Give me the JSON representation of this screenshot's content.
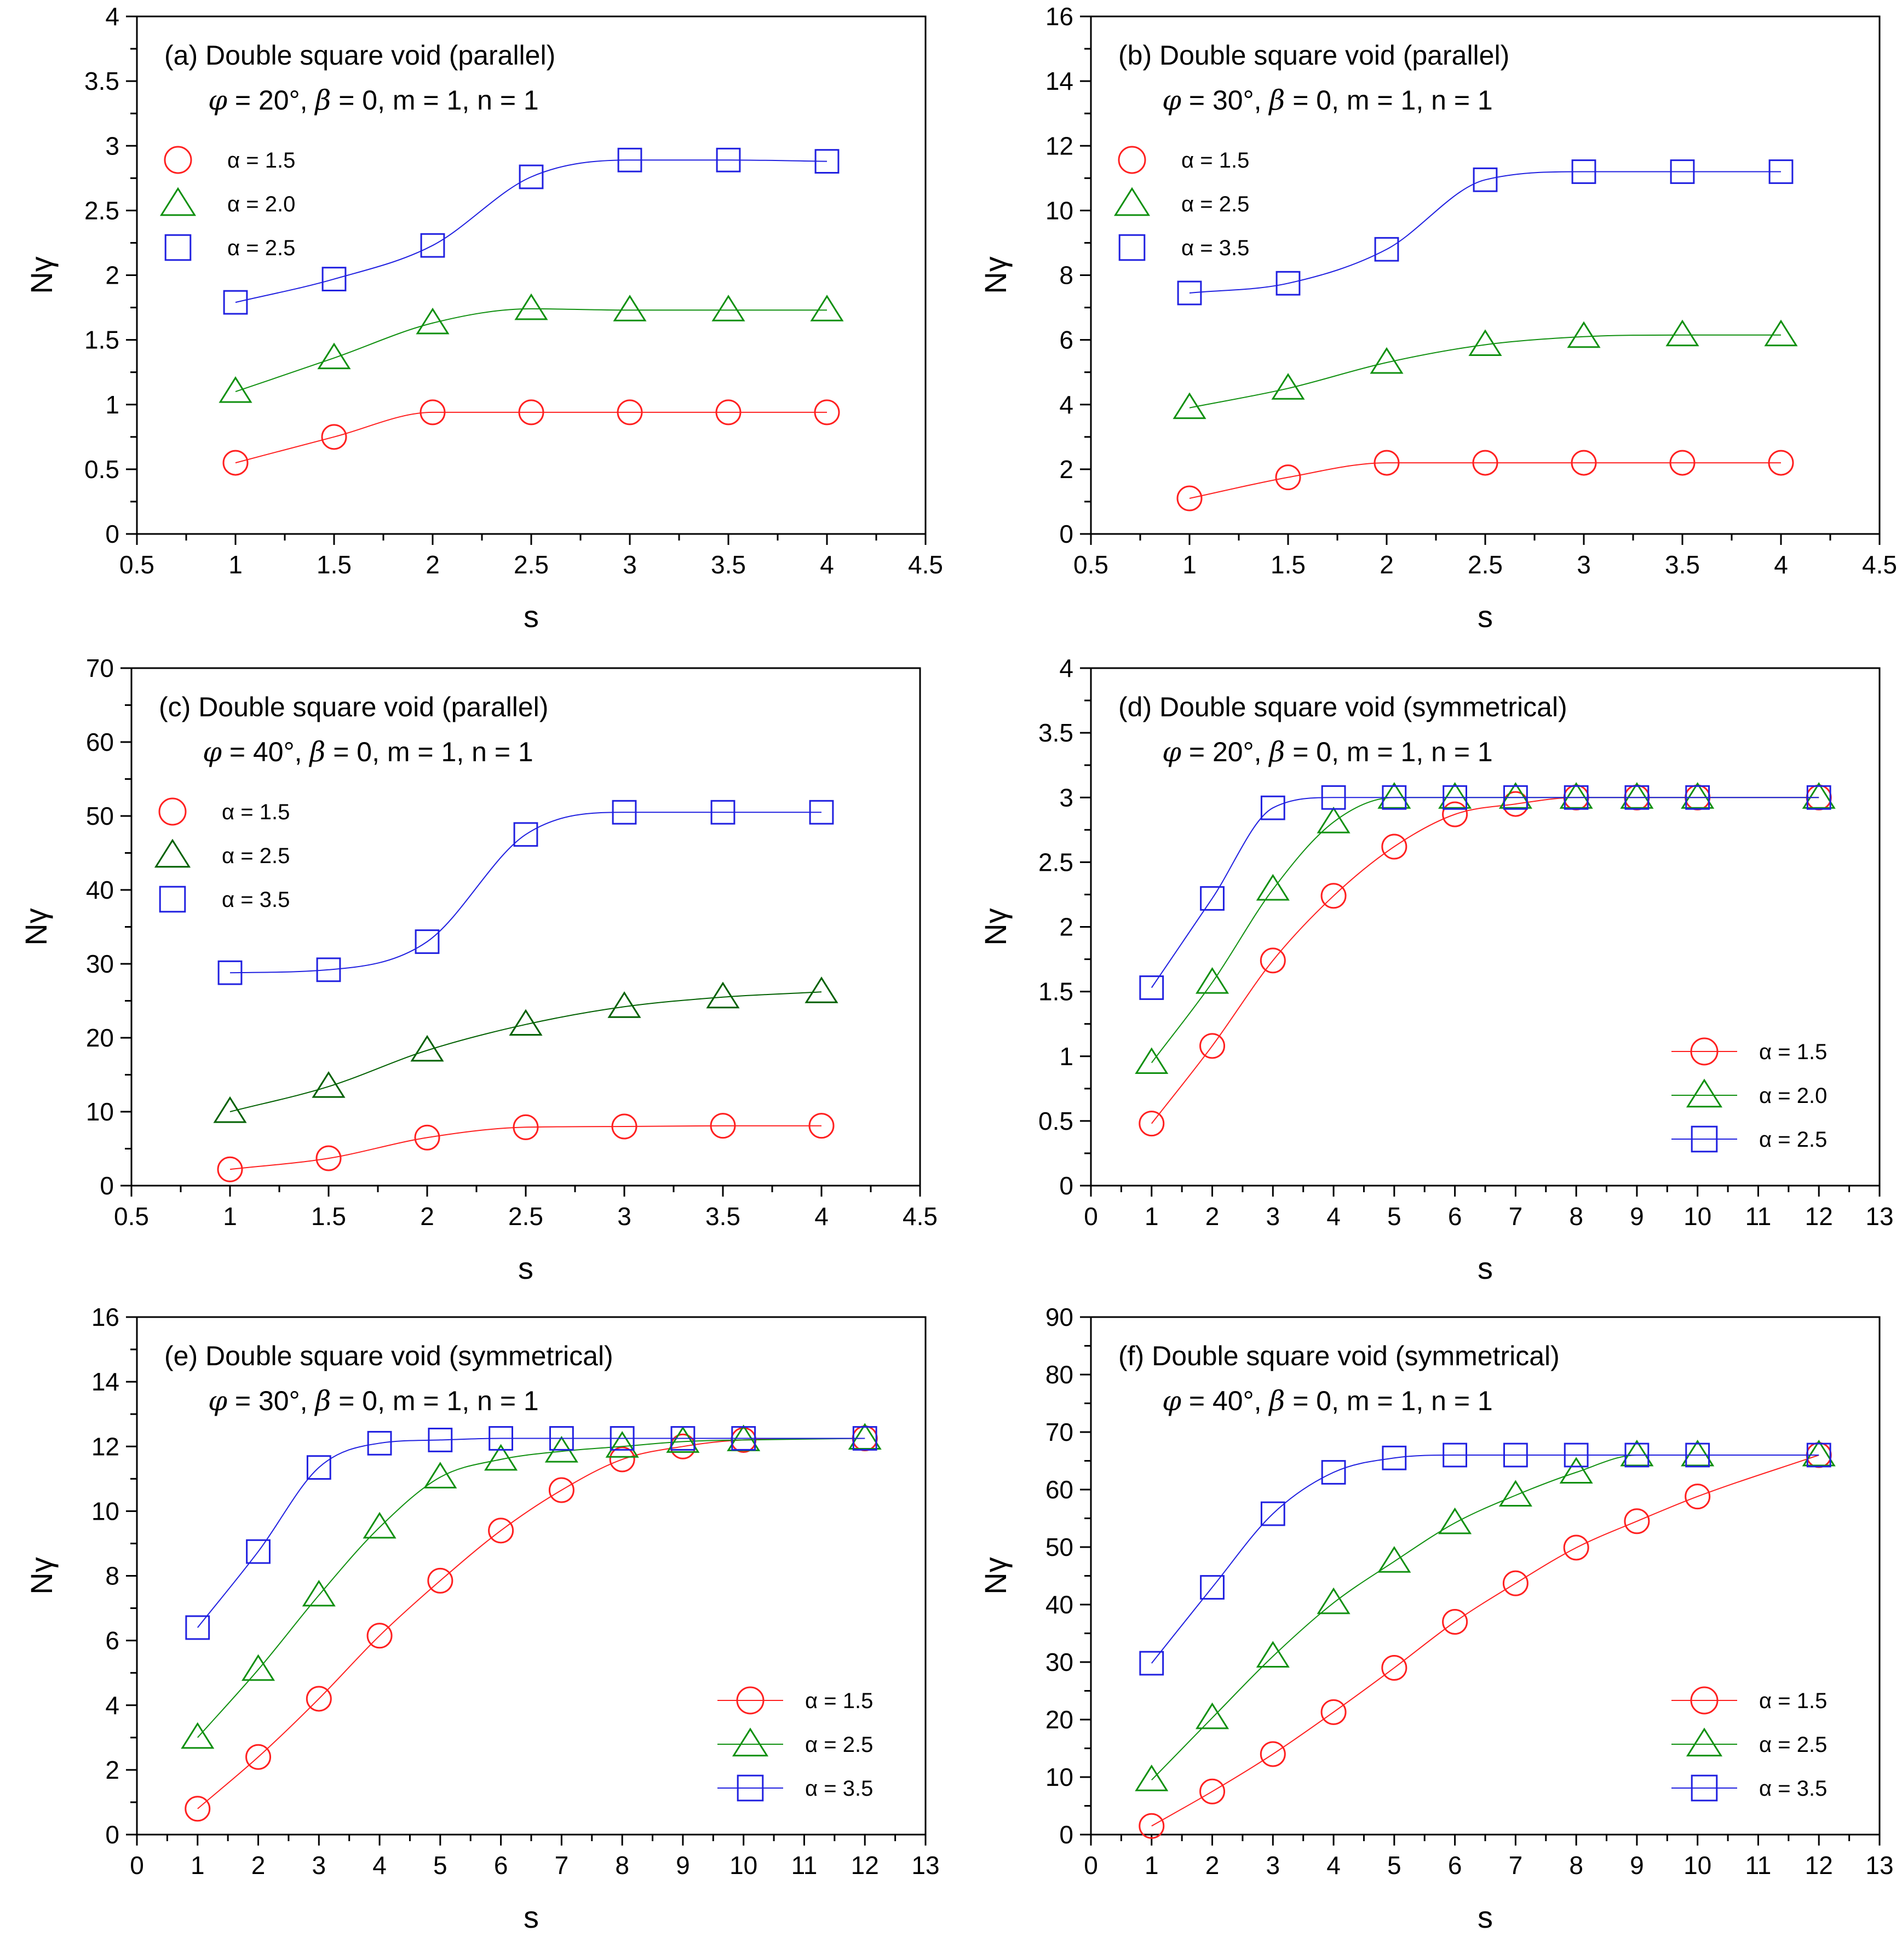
{
  "figure": {
    "charts": [
      {
        "id": "a",
        "type": "line",
        "title": "(a) Double square void (parallel)",
        "params": {
          "phi": "20",
          "beta": "0",
          "m": "1",
          "n": "1"
        },
        "xlabel": "s",
        "ylabel": "Nγ",
        "xlim": [
          0.5,
          4.5
        ],
        "ylim": [
          0,
          4
        ],
        "x_ticks": [
          0.5,
          1,
          1.5,
          2,
          2.5,
          3,
          3.5,
          4,
          4.5
        ],
        "y_ticks": [
          0,
          0.5,
          1,
          1.5,
          2,
          2.5,
          3,
          3.5,
          4
        ],
        "legend_position": "top-left",
        "series": [
          {
            "name": "α = 1.5",
            "marker": "circle",
            "color": "#ff2020",
            "x": [
              1,
              1.5,
              2,
              2.5,
              3,
              3.5,
              4
            ],
            "y": [
              0.55,
              0.75,
              0.94,
              0.94,
              0.94,
              0.94,
              0.94
            ]
          },
          {
            "name": "α = 2.0",
            "marker": "triangle",
            "color": "#109010",
            "x": [
              1,
              1.5,
              2,
              2.5,
              3,
              3.5,
              4
            ],
            "y": [
              1.1,
              1.36,
              1.63,
              1.74,
              1.73,
              1.73,
              1.73
            ]
          },
          {
            "name": "α = 2.5",
            "marker": "square",
            "color": "#2020e0",
            "x": [
              1,
              1.5,
              2,
              2.5,
              3,
              3.5,
              4
            ],
            "y": [
              1.79,
              1.97,
              2.23,
              2.76,
              2.89,
              2.89,
              2.88
            ]
          }
        ]
      },
      {
        "id": "b",
        "type": "line",
        "title": "(b) Double square void (parallel)",
        "params": {
          "phi": "30",
          "beta": "0",
          "m": "1",
          "n": "1"
        },
        "xlabel": "s",
        "ylabel": "Nγ",
        "xlim": [
          0.5,
          4.5
        ],
        "ylim": [
          0,
          16
        ],
        "x_ticks": [
          0.5,
          1,
          1.5,
          2,
          2.5,
          3,
          3.5,
          4,
          4.5
        ],
        "y_ticks": [
          0,
          2,
          4,
          6,
          8,
          10,
          12,
          14,
          16
        ],
        "legend_position": "top-left",
        "series": [
          {
            "name": "α = 1.5",
            "marker": "circle",
            "color": "#ff2020",
            "x": [
              1,
              1.5,
              2,
              2.5,
              3,
              3.5,
              4
            ],
            "y": [
              1.1,
              1.75,
              2.2,
              2.2,
              2.2,
              2.2,
              2.2
            ]
          },
          {
            "name": "α = 2.5",
            "marker": "triangle",
            "color": "#109010",
            "x": [
              1,
              1.5,
              2,
              2.5,
              3,
              3.5,
              4
            ],
            "y": [
              3.9,
              4.5,
              5.3,
              5.85,
              6.1,
              6.15,
              6.15
            ]
          },
          {
            "name": "α = 3.5",
            "marker": "square",
            "color": "#2020e0",
            "x": [
              1,
              1.5,
              2,
              2.5,
              3,
              3.5,
              4
            ],
            "y": [
              7.45,
              7.75,
              8.8,
              10.95,
              11.2,
              11.2,
              11.2
            ]
          }
        ]
      },
      {
        "id": "c",
        "type": "line",
        "title": "(c) Double square void (parallel)",
        "params": {
          "phi": "40",
          "beta": "0",
          "m": "1",
          "n": "1"
        },
        "xlabel": "s",
        "ylabel": "Nγ",
        "xlim": [
          0.5,
          4.5
        ],
        "ylim": [
          0,
          70
        ],
        "x_ticks": [
          0.5,
          1,
          1.5,
          2,
          2.5,
          3,
          3.5,
          4,
          4.5
        ],
        "y_ticks": [
          0,
          10,
          20,
          30,
          40,
          50,
          60,
          70
        ],
        "legend_position": "top-left",
        "series": [
          {
            "name": "α = 1.5",
            "marker": "circle",
            "color": "#ff2020",
            "x": [
              1,
              1.5,
              2,
              2.5,
              3,
              3.5,
              4
            ],
            "y": [
              2.2,
              3.7,
              6.5,
              7.9,
              8.0,
              8.1,
              8.1
            ]
          },
          {
            "name": "α = 2.5",
            "marker": "triangle",
            "color": "#006000",
            "x": [
              1,
              1.5,
              2,
              2.5,
              3,
              3.5,
              4
            ],
            "y": [
              10.0,
              13.4,
              18.3,
              21.8,
              24.2,
              25.5,
              26.2
            ]
          },
          {
            "name": "α = 3.5",
            "marker": "square",
            "color": "#2020e0",
            "x": [
              1,
              1.5,
              2,
              2.5,
              3,
              3.5,
              4
            ],
            "y": [
              28.8,
              29.2,
              33.0,
              47.5,
              50.5,
              50.5,
              50.5
            ]
          }
        ]
      },
      {
        "id": "d",
        "type": "line",
        "title": "(d) Double square void (symmetrical)",
        "params": {
          "phi": "20",
          "beta": "0",
          "m": "1",
          "n": "1"
        },
        "xlabel": "s",
        "ylabel": "Nγ",
        "xlim": [
          0,
          13
        ],
        "ylim": [
          0,
          4
        ],
        "x_ticks": [
          0,
          1,
          2,
          3,
          4,
          5,
          6,
          7,
          8,
          9,
          10,
          11,
          12,
          13
        ],
        "y_ticks": [
          0,
          0.5,
          1,
          1.5,
          2,
          2.5,
          3,
          3.5,
          4
        ],
        "legend_position": "bottom-right",
        "series": [
          {
            "name": "α = 1.5",
            "marker": "circle",
            "color": "#ff2020",
            "x": [
              1,
              2,
              3,
              4,
              5,
              6,
              7,
              8,
              9,
              10,
              12
            ],
            "y": [
              0.48,
              1.08,
              1.74,
              2.24,
              2.62,
              2.87,
              2.95,
              3.0,
              3.0,
              3.0,
              3.0
            ]
          },
          {
            "name": "α = 2.0",
            "marker": "triangle",
            "color": "#109010",
            "x": [
              1,
              2,
              3,
              4,
              5,
              6,
              7,
              8,
              9,
              10,
              12
            ],
            "y": [
              0.95,
              1.57,
              2.29,
              2.81,
              3.0,
              3.0,
              3.0,
              3.0,
              3.0,
              3.0,
              3.0
            ]
          },
          {
            "name": "α = 2.5",
            "marker": "square",
            "color": "#2020e0",
            "x": [
              1,
              2,
              3,
              4,
              5,
              6,
              7,
              8,
              9,
              10,
              12
            ],
            "y": [
              1.53,
              2.22,
              2.92,
              3.0,
              3.0,
              3.0,
              3.0,
              3.0,
              3.0,
              3.0,
              3.0
            ]
          }
        ]
      },
      {
        "id": "e",
        "type": "line",
        "title": "(e) Double square void (symmetrical)",
        "params": {
          "phi": "30",
          "beta": "0",
          "m": "1",
          "n": "1"
        },
        "xlabel": "s",
        "ylabel": "Nγ",
        "xlim": [
          0,
          13
        ],
        "ylim": [
          0,
          16
        ],
        "x_ticks": [
          0,
          1,
          2,
          3,
          4,
          5,
          6,
          7,
          8,
          9,
          10,
          11,
          12,
          13
        ],
        "y_ticks": [
          0,
          2,
          4,
          6,
          8,
          10,
          12,
          14,
          16
        ],
        "legend_position": "bottom-right",
        "series": [
          {
            "name": "α = 1.5",
            "marker": "circle",
            "color": "#ff2020",
            "x": [
              1,
              2,
              3,
              4,
              5,
              6,
              7,
              8,
              9,
              10,
              12
            ],
            "y": [
              0.8,
              2.4,
              4.2,
              6.15,
              7.85,
              9.4,
              10.65,
              11.6,
              12.0,
              12.2,
              12.25
            ]
          },
          {
            "name": "α = 2.5",
            "marker": "triangle",
            "color": "#109010",
            "x": [
              1,
              2,
              3,
              4,
              5,
              6,
              7,
              8,
              9,
              10,
              12
            ],
            "y": [
              3.0,
              5.1,
              7.4,
              9.5,
              11.05,
              11.6,
              11.85,
              12.0,
              12.15,
              12.2,
              12.25
            ]
          },
          {
            "name": "α = 3.5",
            "marker": "square",
            "color": "#2020e0",
            "x": [
              1,
              2,
              3,
              4,
              5,
              6,
              7,
              8,
              9,
              10,
              12
            ],
            "y": [
              6.4,
              8.75,
              11.35,
              12.1,
              12.2,
              12.25,
              12.25,
              12.25,
              12.25,
              12.25,
              12.25
            ]
          }
        ]
      },
      {
        "id": "f",
        "type": "line",
        "title": "(f) Double square void (symmetrical)",
        "params": {
          "phi": "40",
          "beta": "0",
          "m": "1",
          "n": "1"
        },
        "xlabel": "s",
        "ylabel": "Nγ",
        "xlim": [
          0,
          13
        ],
        "ylim": [
          0,
          90
        ],
        "x_ticks": [
          0,
          1,
          2,
          3,
          4,
          5,
          6,
          7,
          8,
          9,
          10,
          11,
          12,
          13
        ],
        "y_ticks": [
          0,
          10,
          20,
          30,
          40,
          50,
          60,
          70,
          80,
          90
        ],
        "legend_position": "bottom-right",
        "series": [
          {
            "name": "α = 1.5",
            "marker": "circle",
            "color": "#ff2020",
            "x": [
              1,
              2,
              3,
              4,
              5,
              6,
              7,
              8,
              9,
              10,
              12
            ],
            "y": [
              1.5,
              7.5,
              14.0,
              21.3,
              29.0,
              37.0,
              43.7,
              49.9,
              54.5,
              58.8,
              66.0
            ]
          },
          {
            "name": "α = 2.5",
            "marker": "triangle",
            "color": "#109010",
            "x": [
              1,
              2,
              3,
              4,
              5,
              6,
              7,
              8,
              9,
              10,
              12
            ],
            "y": [
              9.5,
              20.3,
              31.0,
              40.3,
              47.5,
              54.2,
              59.0,
              63.0,
              66.0,
              66.0,
              66.0
            ]
          },
          {
            "name": "α = 3.5",
            "marker": "square",
            "color": "#2020e0",
            "x": [
              1,
              2,
              3,
              4,
              5,
              6,
              7,
              8,
              9,
              10,
              12
            ],
            "y": [
              29.8,
              43.0,
              55.8,
              63.0,
              65.5,
              66.0,
              66.0,
              66.0,
              66.0,
              66.0,
              66.0
            ]
          }
        ]
      }
    ]
  }
}
